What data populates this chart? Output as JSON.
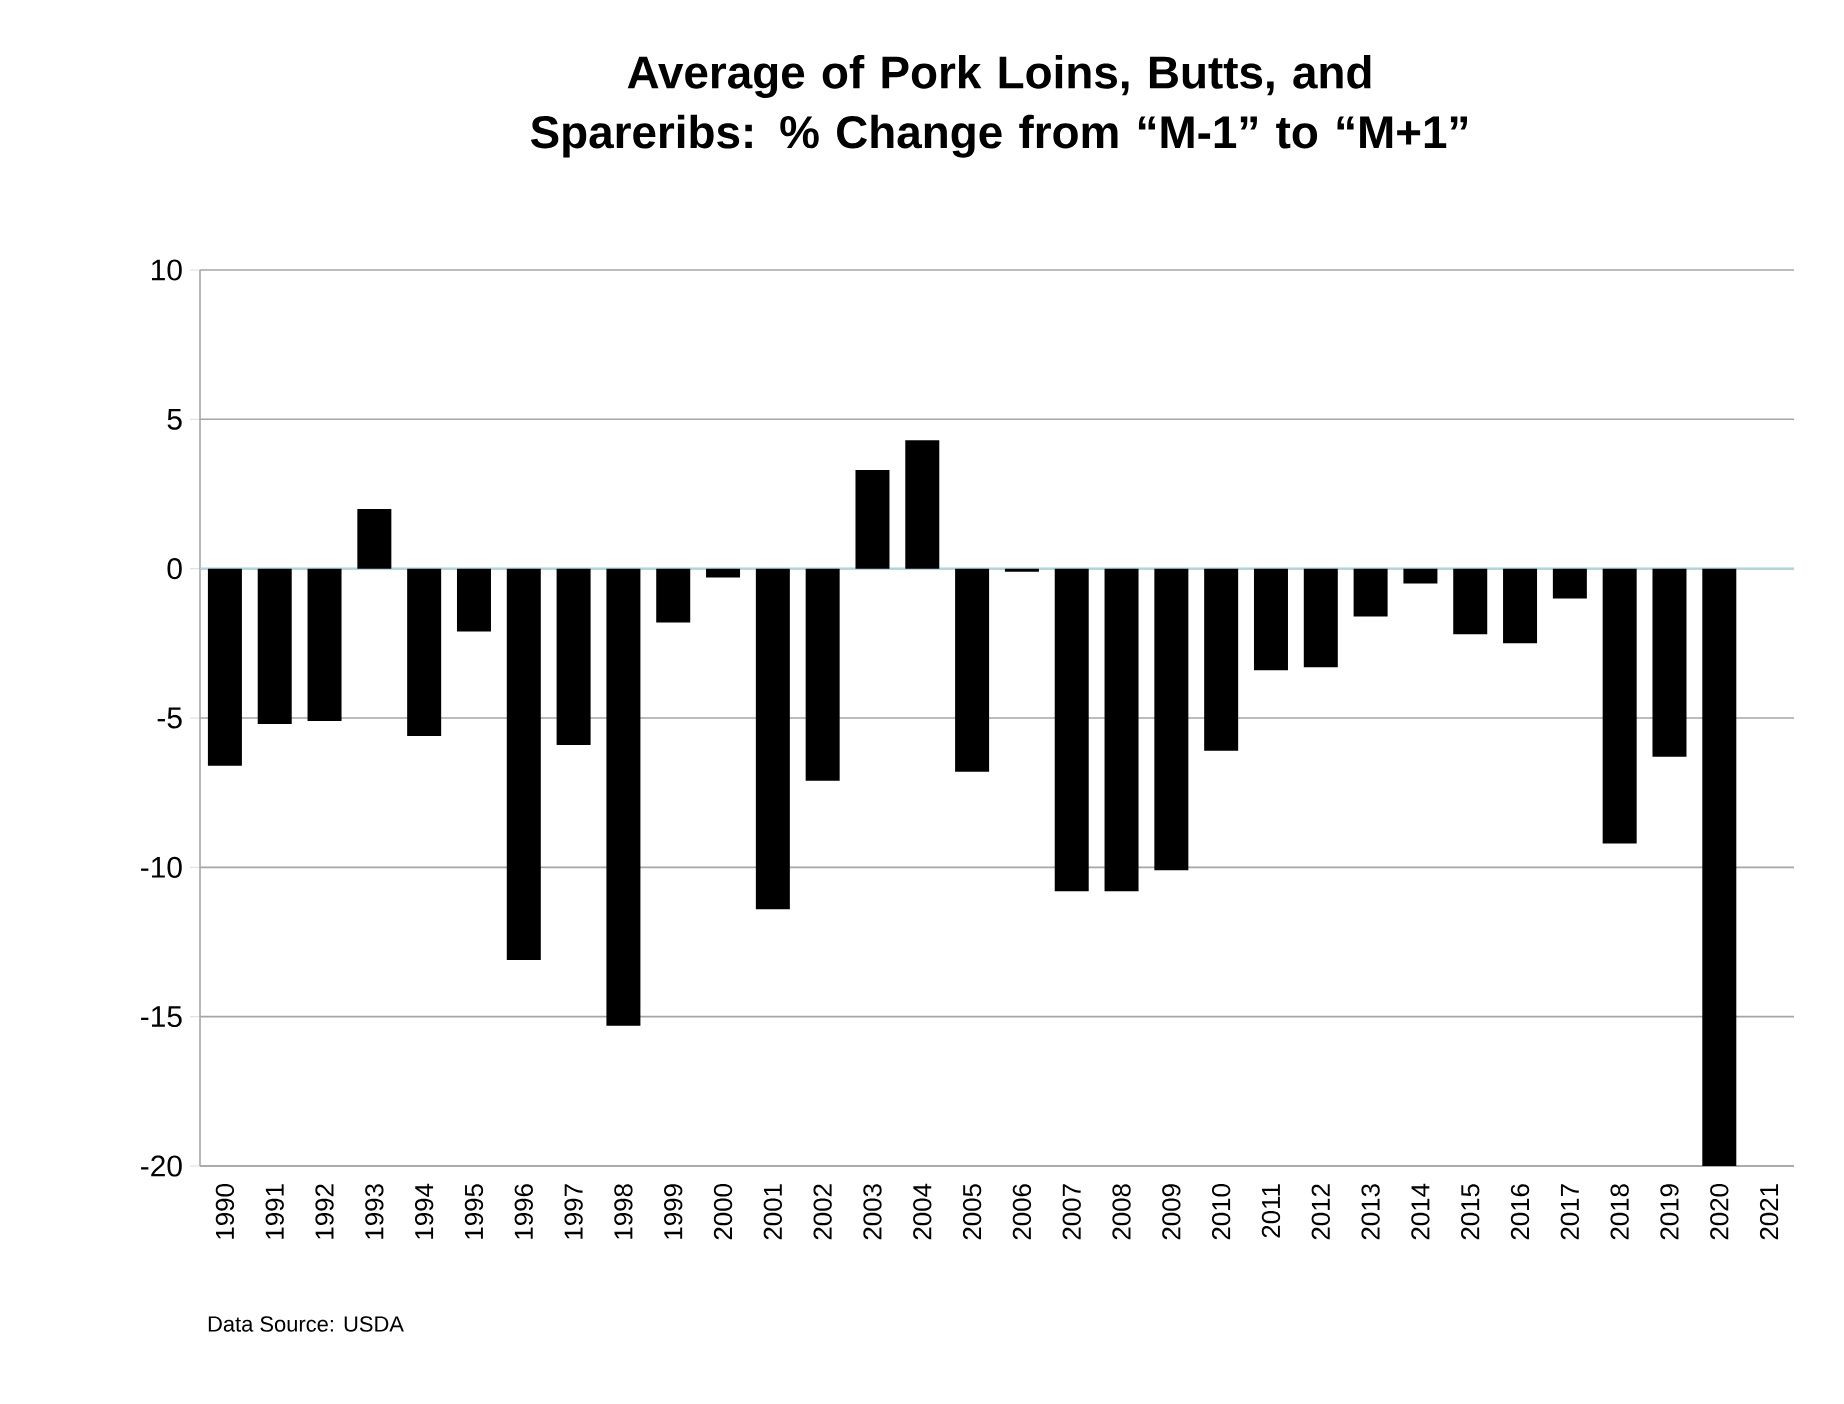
{
  "chart_data": {
    "type": "bar",
    "title": "Average of Pork Loins, Butts, and Spareribs: % Change from “M-1” to “M+1”",
    "categories": [
      "1990",
      "1991",
      "1992",
      "1993",
      "1994",
      "1995",
      "1996",
      "1997",
      "1998",
      "1999",
      "2000",
      "2001",
      "2002",
      "2003",
      "2004",
      "2005",
      "2006",
      "2007",
      "2008",
      "2009",
      "2010",
      "2011",
      "2012",
      "2013",
      "2014",
      "2015",
      "2016",
      "2017",
      "2018",
      "2019",
      "2020",
      "2021"
    ],
    "values": [
      -6.6,
      -5.2,
      -5.1,
      2.0,
      -5.6,
      -2.1,
      -13.1,
      -5.9,
      -15.3,
      -1.8,
      -0.3,
      -11.4,
      -7.1,
      3.3,
      4.3,
      -6.8,
      -0.1,
      -10.8,
      -10.8,
      -10.1,
      -6.1,
      -3.4,
      -3.3,
      -1.6,
      -0.5,
      -2.2,
      -2.5,
      -1.0,
      -9.2,
      -6.3,
      -20,
      null
    ],
    "color": "#000000",
    "ylim": [
      -20,
      10
    ],
    "yticks": [
      -20,
      -15,
      -10,
      -5,
      0,
      5,
      10
    ],
    "grid": "y",
    "ref_lines": [
      {
        "axis": "y",
        "value": 0,
        "color": "#a8d8dc"
      }
    ],
    "annotations": [
      "Data Source: USDA"
    ]
  }
}
